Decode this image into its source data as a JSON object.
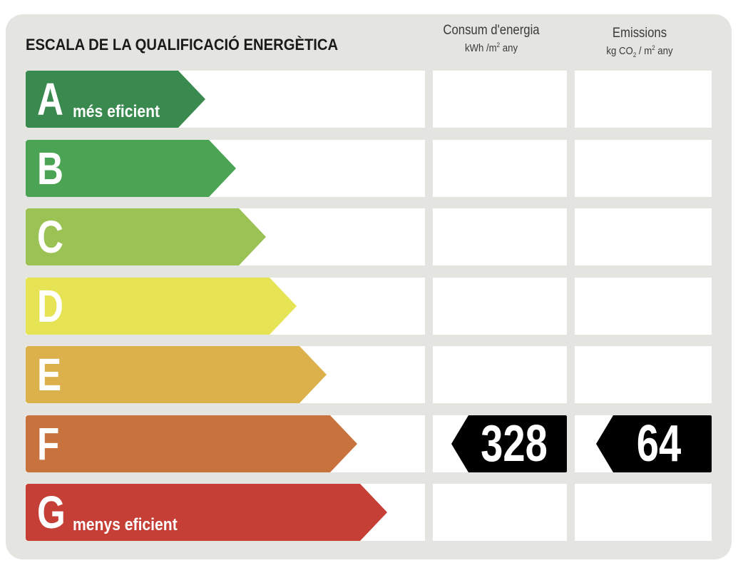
{
  "title": "ESCALA DE LA QUALIFICACIÓ ENERGÈTICA",
  "columns": {
    "energy": {
      "heading": "Consum d'energia",
      "unit_main": "kWh /m",
      "unit_exp": "2",
      "unit_tail": " any"
    },
    "emissions": {
      "heading": "Emissions",
      "unit_a": "kg CO",
      "unit_sub": "2",
      "unit_b": " / m",
      "unit_exp": "2",
      "unit_tail": " any"
    }
  },
  "classes": [
    {
      "letter": "A",
      "caption": "més eficient",
      "color": "#3a8a4f"
    },
    {
      "letter": "B",
      "caption": "",
      "color": "#4aa453"
    },
    {
      "letter": "C",
      "caption": "",
      "color": "#9bc255"
    },
    {
      "letter": "D",
      "caption": "",
      "color": "#e6e454"
    },
    {
      "letter": "E",
      "caption": "",
      "color": "#dcb14b"
    },
    {
      "letter": "F",
      "caption": "",
      "color": "#c8733d"
    },
    {
      "letter": "G",
      "caption": "menys eficient",
      "color": "#c53f37"
    }
  ],
  "rating": {
    "energy_class": "F",
    "energy_value": "328",
    "emissions_class": "F",
    "emissions_value": "64"
  }
}
